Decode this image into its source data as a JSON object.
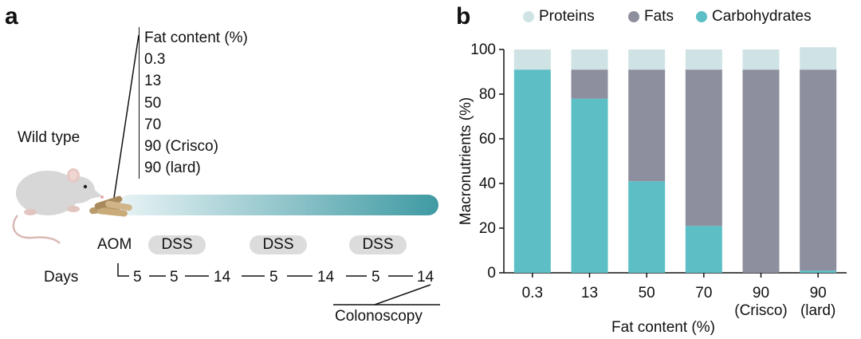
{
  "panel_a": {
    "letter": "a",
    "genotype": "Wild type",
    "fat_list_header": "Fat content (%)",
    "fat_list": [
      "0.3",
      "13",
      "50",
      "70",
      "90 (Crisco)",
      "90 (lard)"
    ],
    "aom_label": "AOM",
    "dss_labels": [
      "DSS",
      "DSS",
      "DSS"
    ],
    "days_label": "Days",
    "day_values": [
      "5",
      "5",
      "14",
      "5",
      "14",
      "5",
      "14"
    ],
    "colonoscopy_label": "Colonoscopy",
    "colors": {
      "bar_start": "#e8f3f5",
      "bar_end": "#3f9aa3",
      "pill": "#dcdcdc"
    }
  },
  "panel_b": {
    "letter": "b"
  },
  "chart_data": {
    "type": "bar",
    "stacked": true,
    "title": "",
    "xlabel": "Fat content (%)",
    "ylabel": "Macronutrients (%)",
    "ylim": [
      0,
      100
    ],
    "yticks": [
      "0",
      "20",
      "40",
      "60",
      "80",
      "100"
    ],
    "categories": [
      "0.3",
      "13",
      "50",
      "70",
      "90\n(Crisco)",
      "90\n(lard)"
    ],
    "category_labels": [
      [
        "0.3"
      ],
      [
        "13"
      ],
      [
        "50"
      ],
      [
        "70"
      ],
      [
        "90",
        "(Crisco)"
      ],
      [
        "90",
        "(lard)"
      ]
    ],
    "series": [
      {
        "name": "Carbohydrates",
        "color": "#5bbfc5",
        "values": [
          91,
          78,
          41,
          21,
          0,
          1
        ]
      },
      {
        "name": "Fats",
        "color": "#8e8f9e",
        "values": [
          0,
          13,
          50,
          70,
          91,
          90
        ]
      },
      {
        "name": "Proteins",
        "color": "#cfe3e5",
        "values": [
          9,
          9,
          9,
          9,
          9,
          10
        ]
      }
    ],
    "legend": {
      "position": "top",
      "items": [
        {
          "label": "Proteins",
          "color": "#cfe3e5"
        },
        {
          "label": "Fats",
          "color": "#8e8f9e"
        },
        {
          "label": "Carbohydrates",
          "color": "#5bbfc5"
        }
      ]
    }
  }
}
